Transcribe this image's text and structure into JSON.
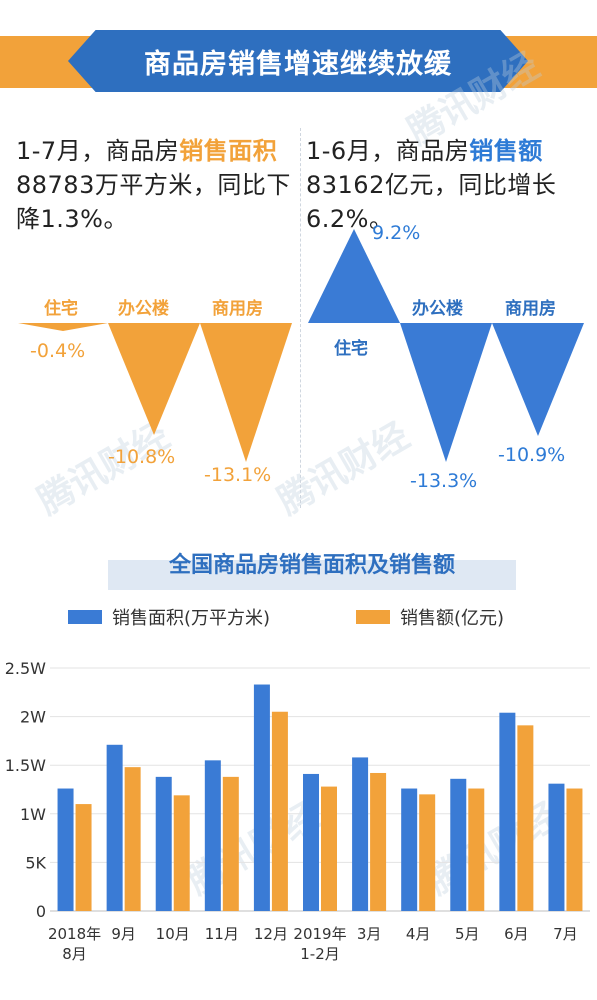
{
  "header": {
    "title": "商品房销售增速继续放缓"
  },
  "left_stat": {
    "part1": "1-7月，商品房",
    "highlight": "销售面积",
    "part2": "88783万平方米，同比下降1.3%。"
  },
  "right_stat": {
    "part1": "1-6月，商品房",
    "highlight": "销售额",
    "part2": "83162亿元，同比增长6.2%。"
  },
  "area_breakdown": {
    "items": [
      {
        "label": "住宅",
        "value": -0.4,
        "text": "-0.4%"
      },
      {
        "label": "办公楼",
        "value": -10.8,
        "text": "-10.8%"
      },
      {
        "label": "商用房",
        "value": -13.1,
        "text": "-13.1%"
      }
    ]
  },
  "amount_breakdown": {
    "items": [
      {
        "label": "住宅",
        "value": 9.2,
        "text": "9.2%"
      },
      {
        "label": "办公楼",
        "value": -13.3,
        "text": "-13.3%"
      },
      {
        "label": "商用房",
        "value": -10.9,
        "text": "-10.9%"
      }
    ]
  },
  "watermark": "腾讯财经",
  "colors": {
    "orange": "#f2a23a",
    "blue": "#2e7bd6",
    "dark_blue": "#2e6fbf"
  },
  "chart_data": {
    "type": "bar",
    "title": "全国商品房销售面积及销售额",
    "categories": [
      "2018年8月",
      "9月",
      "10月",
      "11月",
      "12月",
      "2019年1-2月",
      "3月",
      "4月",
      "5月",
      "6月",
      "7月"
    ],
    "series": [
      {
        "name": "销售面积(万平方米)",
        "color": "#3a7bd5",
        "values": [
          12600,
          17100,
          13800,
          15500,
          23300,
          14100,
          15800,
          12600,
          13600,
          20400,
          13100
        ]
      },
      {
        "name": "销售额(亿元)",
        "color": "#f2a23a",
        "values": [
          11000,
          14800,
          11900,
          13800,
          20500,
          12800,
          14200,
          12000,
          12600,
          19100,
          12600
        ]
      }
    ],
    "y_ticks": [
      "0",
      "5K",
      "1W",
      "1.5W",
      "2W",
      "2.5W"
    ],
    "ylim": [
      0,
      25000
    ],
    "grid": true,
    "legend": "top"
  }
}
